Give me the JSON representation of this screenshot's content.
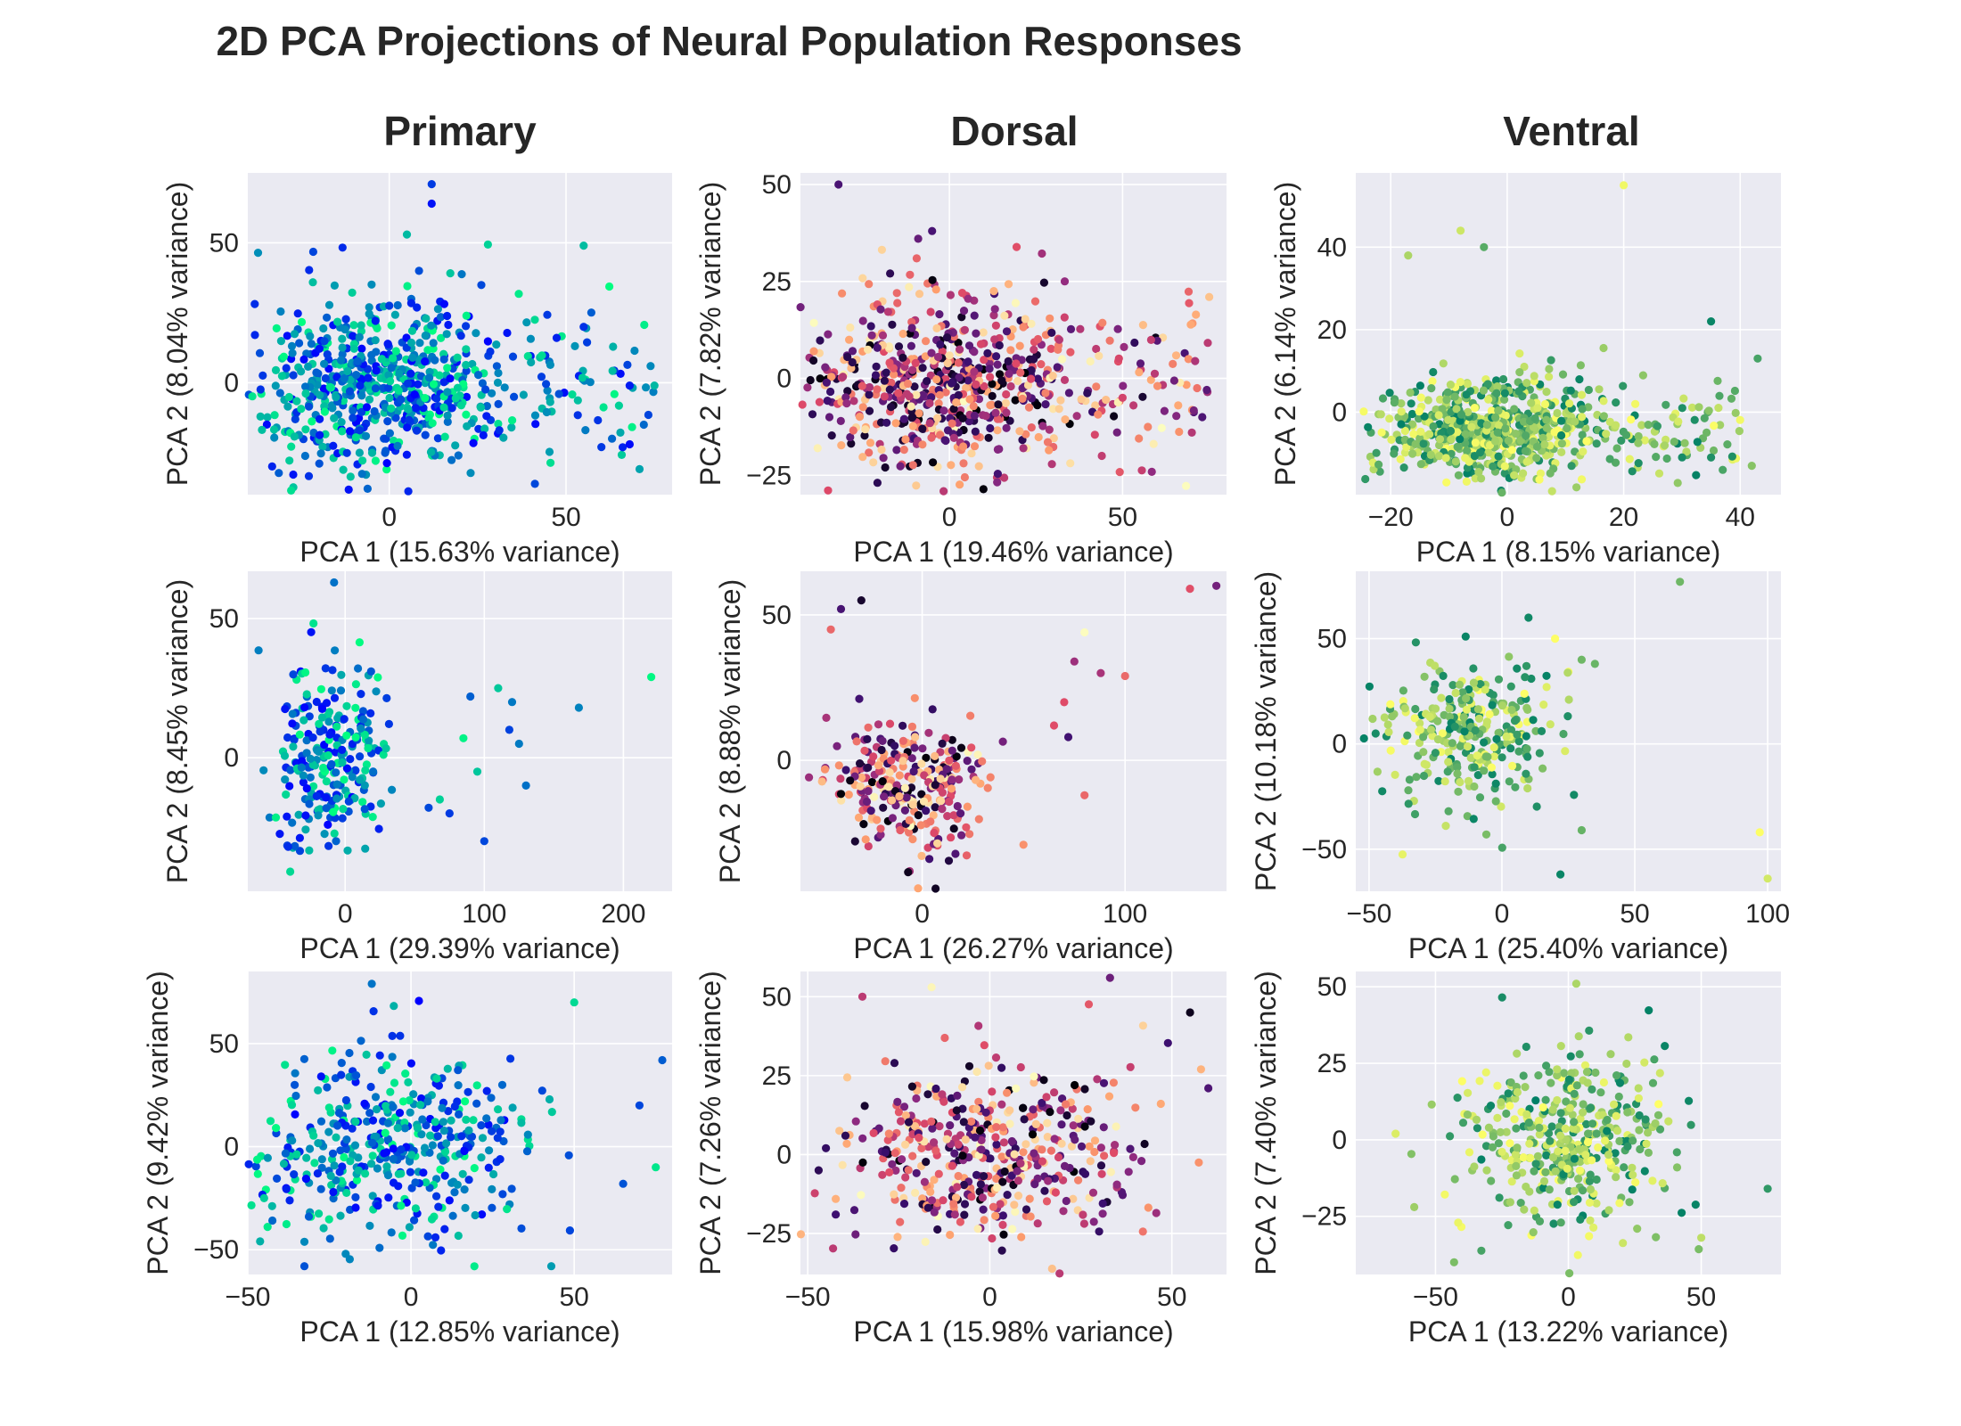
{
  "figure": {
    "title": "2D PCA Projections of Neural Population Responses",
    "column_titles": [
      "Primary",
      "Dorsal",
      "Ventral"
    ]
  },
  "chart_data": [
    {
      "type": "scatter",
      "region": "Primary",
      "row": 0,
      "col": 0,
      "xlabel": "PCA 1 (15.63% variance)",
      "ylabel": "PCA 2 (8.04% variance)",
      "xlim": [
        -40,
        80
      ],
      "ylim": [
        -40,
        75
      ],
      "xticks": [
        0,
        50
      ],
      "yticks": [
        0,
        50
      ],
      "colormap": "winter",
      "n_points": 700,
      "seed": 11,
      "cloud": {
        "cx": -5,
        "cy": 0,
        "sx": 18,
        "sy": 16,
        "tail": [
          15,
          75
        ],
        "tail_dir": 1
      },
      "outliers": [
        [
          12,
          71
        ],
        [
          12,
          64
        ],
        [
          5,
          53
        ],
        [
          55,
          49
        ],
        [
          55,
          20
        ],
        [
          63,
          -20
        ],
        [
          68,
          -22
        ],
        [
          75,
          -1
        ],
        [
          68,
          -1
        ],
        [
          72,
          -15
        ],
        [
          60,
          -23
        ],
        [
          48,
          -4
        ]
      ]
    },
    {
      "type": "scatter",
      "region": "Dorsal",
      "row": 0,
      "col": 1,
      "xlabel": "PCA 1 (19.46% variance)",
      "ylabel": "PCA 2 (7.82% variance)",
      "xlim": [
        -43,
        80
      ],
      "ylim": [
        -30,
        53
      ],
      "xticks": [
        0,
        50
      ],
      "yticks": [
        -25,
        0,
        25,
        50
      ],
      "colormap": "magma",
      "n_points": 700,
      "seed": 23,
      "cloud": {
        "cx": -2,
        "cy": -1,
        "sx": 20,
        "sy": 11,
        "tail": [
          20,
          75
        ],
        "tail_dir": 1
      },
      "outliers": [
        [
          -32,
          50
        ],
        [
          -5,
          38
        ],
        [
          -9,
          36
        ],
        [
          73,
          -10
        ],
        [
          75,
          21
        ],
        [
          70,
          -14
        ],
        [
          50,
          -5
        ],
        [
          44,
          -20
        ]
      ]
    },
    {
      "type": "scatter",
      "region": "Ventral",
      "row": 0,
      "col": 2,
      "xlabel": "PCA 1 (8.15% variance)",
      "ylabel": "PCA 2 (6.14% variance)",
      "xlim": [
        -26,
        47
      ],
      "ylim": [
        -20,
        58
      ],
      "xticks": [
        -20,
        0,
        20,
        40
      ],
      "yticks": [
        0,
        20,
        40
      ],
      "colormap": "summer",
      "n_points": 700,
      "seed": 37,
      "cloud": {
        "cx": -3,
        "cy": -4,
        "sx": 9,
        "sy": 6,
        "tail": [
          10,
          40
        ],
        "tail_dir": 1
      },
      "outliers": [
        [
          20,
          55
        ],
        [
          43,
          13
        ],
        [
          35,
          22
        ],
        [
          42,
          -13
        ],
        [
          37,
          -14
        ],
        [
          35,
          -11
        ],
        [
          -8,
          44
        ],
        [
          -17,
          38
        ],
        [
          -4,
          40
        ]
      ]
    },
    {
      "type": "scatter",
      "region": "Primary",
      "row": 1,
      "col": 0,
      "xlabel": "PCA 1 (29.39% variance)",
      "ylabel": "PCA 2 (8.45% variance)",
      "xlim": [
        -70,
        235
      ],
      "ylim": [
        -48,
        67
      ],
      "xticks": [
        0,
        100,
        200
      ],
      "yticks": [
        0,
        50
      ],
      "colormap": "winter",
      "n_points": 250,
      "seed": 41,
      "cloud": {
        "cx": -12,
        "cy": 0,
        "sx": 20,
        "sy": 18,
        "tail": [
          0,
          0
        ],
        "tail_dir": 1
      },
      "outliers": [
        [
          220,
          29
        ],
        [
          168,
          18
        ],
        [
          130,
          -10
        ],
        [
          110,
          25
        ],
        [
          120,
          20
        ],
        [
          118,
          10
        ],
        [
          125,
          5
        ],
        [
          100,
          -30
        ],
        [
          95,
          -5
        ],
        [
          85,
          7
        ],
        [
          90,
          22
        ],
        [
          75,
          -20
        ],
        [
          60,
          -18
        ],
        [
          68,
          -15
        ],
        [
          -8,
          63
        ]
      ]
    },
    {
      "type": "scatter",
      "region": "Dorsal",
      "row": 1,
      "col": 1,
      "xlabel": "PCA 1 (26.27% variance)",
      "ylabel": "PCA 2 (8.88% variance)",
      "xlim": [
        -60,
        150
      ],
      "ylim": [
        -45,
        65
      ],
      "xticks": [
        0,
        100
      ],
      "yticks": [
        0,
        50
      ],
      "colormap": "magma",
      "n_points": 280,
      "seed": 53,
      "cloud": {
        "cx": -5,
        "cy": -8,
        "sx": 20,
        "sy": 12,
        "tail": [
          0,
          0
        ],
        "tail_dir": 1
      },
      "outliers": [
        [
          145,
          60
        ],
        [
          132,
          59
        ],
        [
          100,
          29
        ],
        [
          80,
          44
        ],
        [
          75,
          34
        ],
        [
          88,
          30
        ],
        [
          70,
          20
        ],
        [
          65,
          12
        ],
        [
          72,
          8
        ],
        [
          -45,
          45
        ],
        [
          -40,
          52
        ],
        [
          -30,
          55
        ],
        [
          80,
          -12
        ],
        [
          -2,
          -44
        ]
      ]
    },
    {
      "type": "scatter",
      "region": "Ventral",
      "row": 1,
      "col": 2,
      "xlabel": "PCA 1 (25.40% variance)",
      "ylabel": "PCA 2 (10.18% variance)",
      "xlim": [
        -55,
        105
      ],
      "ylim": [
        -70,
        82
      ],
      "xticks": [
        -50,
        0,
        50,
        100
      ],
      "yticks": [
        -50,
        0,
        50
      ],
      "colormap": "summer",
      "n_points": 280,
      "seed": 67,
      "cloud": {
        "cx": -15,
        "cy": 5,
        "sx": 15,
        "sy": 17,
        "tail": [
          0,
          0
        ],
        "tail_dir": 1
      },
      "outliers": [
        [
          67,
          77
        ],
        [
          97,
          -42
        ],
        [
          100,
          -64
        ],
        [
          22,
          -62
        ],
        [
          30,
          -41
        ],
        [
          10,
          60
        ],
        [
          20,
          50
        ],
        [
          30,
          40
        ],
        [
          35,
          38
        ]
      ]
    },
    {
      "type": "scatter",
      "region": "Primary",
      "row": 2,
      "col": 0,
      "xlabel": "PCA 1 (12.85% variance)",
      "ylabel": "PCA 2 (9.42% variance)",
      "xlim": [
        -50,
        80
      ],
      "ylim": [
        -62,
        85
      ],
      "xticks": [
        -50,
        0,
        50
      ],
      "yticks": [
        -50,
        0,
        50
      ],
      "colormap": "winter",
      "n_points": 420,
      "seed": 79,
      "cloud": {
        "cx": -5,
        "cy": 0,
        "sx": 22,
        "sy": 22,
        "tail": [
          0,
          0
        ],
        "tail_dir": 1
      },
      "outliers": [
        [
          -12,
          79
        ],
        [
          50,
          70
        ],
        [
          77,
          42
        ],
        [
          70,
          20
        ],
        [
          65,
          -18
        ],
        [
          75,
          -10
        ],
        [
          43,
          -58
        ],
        [
          -20,
          -52
        ],
        [
          -45,
          -25
        ]
      ]
    },
    {
      "type": "scatter",
      "region": "Dorsal",
      "row": 2,
      "col": 1,
      "xlabel": "PCA 1 (15.98% variance)",
      "ylabel": "PCA 2 (7.26% variance)",
      "xlim": [
        -52,
        65
      ],
      "ylim": [
        -38,
        58
      ],
      "xticks": [
        -50,
        0,
        50
      ],
      "yticks": [
        -25,
        0,
        25,
        50
      ],
      "colormap": "magma",
      "n_points": 450,
      "seed": 83,
      "cloud": {
        "cx": 0,
        "cy": 0,
        "sx": 20,
        "sy": 14,
        "tail": [
          0,
          0
        ],
        "tail_dir": 1
      },
      "outliers": [
        [
          33,
          56
        ],
        [
          -16,
          53
        ],
        [
          -35,
          50
        ],
        [
          60,
          21
        ],
        [
          58,
          27
        ],
        [
          55,
          45
        ],
        [
          -47,
          -5
        ],
        [
          -45,
          2
        ]
      ]
    },
    {
      "type": "scatter",
      "region": "Ventral",
      "row": 2,
      "col": 2,
      "xlabel": "PCA 1 (13.22% variance)",
      "ylabel": "PCA 2 (7.40% variance)",
      "xlim": [
        -80,
        80
      ],
      "ylim": [
        -44,
        55
      ],
      "xticks": [
        -50,
        0,
        50
      ],
      "yticks": [
        -25,
        0,
        25,
        50
      ],
      "colormap": "summer",
      "n_points": 400,
      "seed": 97,
      "cloud": {
        "cx": 0,
        "cy": 0,
        "sx": 20,
        "sy": 15,
        "tail": [
          0,
          0
        ],
        "tail_dir": 1
      },
      "outliers": [
        [
          75,
          -16
        ],
        [
          3,
          51
        ],
        [
          -43,
          -40
        ],
        [
          -65,
          2
        ],
        [
          -58,
          -22
        ],
        [
          50,
          -32
        ]
      ]
    }
  ]
}
